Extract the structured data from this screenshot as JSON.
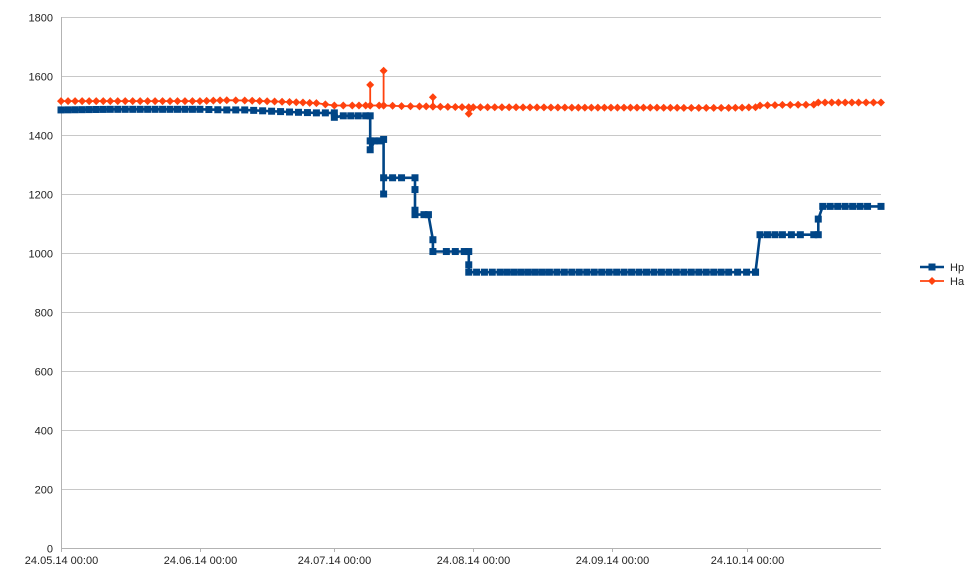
{
  "chart_data": {
    "type": "line",
    "title": "",
    "xlabel": "",
    "ylabel": "",
    "xlim": [
      "2014-05-24",
      "2014-11-23"
    ],
    "ylim": [
      0,
      1800
    ],
    "y_ticks": [
      0,
      200,
      400,
      600,
      800,
      1000,
      1200,
      1400,
      1600,
      1800
    ],
    "x_ticks": [
      {
        "date": "2014-05-24",
        "label": "24.05.14 00:00"
      },
      {
        "date": "2014-06-24",
        "label": "24.06.14 00:00"
      },
      {
        "date": "2014-07-24",
        "label": "24.07.14 00:00"
      },
      {
        "date": "2014-08-24",
        "label": "24.08.14 00:00"
      },
      {
        "date": "2014-09-24",
        "label": "24.09.14 00:00"
      },
      {
        "date": "2014-10-24",
        "label": "24.10.14 00:00"
      }
    ],
    "grid": "horizontal",
    "legend_position": "right",
    "series": [
      {
        "name": "Hp",
        "color": "#004586",
        "marker": "square",
        "points": [
          [
            "2014-05-24",
            1485
          ],
          [
            "2014-06-04",
            1487
          ],
          [
            "2014-06-14",
            1487
          ],
          [
            "2014-06-24",
            1487
          ],
          [
            "2014-06-30",
            1485
          ],
          [
            "2014-07-04",
            1485
          ],
          [
            "2014-07-08",
            1482
          ],
          [
            "2014-07-14",
            1478
          ],
          [
            "2014-07-20",
            1475
          ],
          [
            "2014-07-24",
            1475
          ],
          [
            "2014-07-24",
            1460
          ],
          [
            "2014-07-26",
            1465
          ],
          [
            "2014-07-31",
            1465
          ],
          [
            "2014-08-01",
            1465
          ],
          [
            "2014-08-01",
            1380
          ],
          [
            "2014-08-01",
            1350
          ],
          [
            "2014-08-02",
            1380
          ],
          [
            "2014-08-03",
            1380
          ],
          [
            "2014-08-04",
            1385
          ],
          [
            "2014-08-04",
            1200
          ],
          [
            "2014-08-04",
            1255
          ],
          [
            "2014-08-06",
            1255
          ],
          [
            "2014-08-08",
            1255
          ],
          [
            "2014-08-11",
            1255
          ],
          [
            "2014-08-11",
            1215
          ],
          [
            "2014-08-11",
            1145
          ],
          [
            "2014-08-11",
            1130
          ],
          [
            "2014-08-13",
            1130
          ],
          [
            "2014-08-14",
            1130
          ],
          [
            "2014-08-15",
            1045
          ],
          [
            "2014-08-15",
            1005
          ],
          [
            "2014-08-18",
            1005
          ],
          [
            "2014-08-20",
            1005
          ],
          [
            "2014-08-22",
            1005
          ],
          [
            "2014-08-23",
            1005
          ],
          [
            "2014-08-23",
            960
          ],
          [
            "2014-08-23",
            935
          ],
          [
            "2014-08-30",
            935
          ],
          [
            "2014-09-10",
            935
          ],
          [
            "2014-09-20",
            935
          ],
          [
            "2014-09-30",
            935
          ],
          [
            "2014-10-10",
            935
          ],
          [
            "2014-10-20",
            935
          ],
          [
            "2014-10-26",
            935
          ],
          [
            "2014-10-26",
            935
          ],
          [
            "2014-10-27",
            1062
          ],
          [
            "2014-11-01",
            1062
          ],
          [
            "2014-11-05",
            1062
          ],
          [
            "2014-11-08",
            1062
          ],
          [
            "2014-11-09",
            1062
          ],
          [
            "2014-11-09",
            1115
          ],
          [
            "2014-11-10",
            1158
          ],
          [
            "2014-11-15",
            1158
          ],
          [
            "2014-11-20",
            1158
          ],
          [
            "2014-11-23",
            1158
          ]
        ]
      },
      {
        "name": "Ha",
        "color": "#ff420e",
        "marker": "diamond",
        "points": [
          [
            "2014-05-24",
            1515
          ],
          [
            "2014-06-04",
            1515
          ],
          [
            "2014-06-14",
            1515
          ],
          [
            "2014-06-24",
            1515
          ],
          [
            "2014-06-30",
            1518
          ],
          [
            "2014-07-04",
            1517
          ],
          [
            "2014-07-14",
            1512
          ],
          [
            "2014-07-20",
            1508
          ],
          [
            "2014-07-24",
            1500
          ],
          [
            "2014-07-28",
            1500
          ],
          [
            "2014-07-31",
            1500
          ],
          [
            "2014-08-01",
            1500
          ],
          [
            "2014-08-01",
            1570
          ],
          [
            "2014-08-01",
            1500
          ],
          [
            "2014-08-03",
            1500
          ],
          [
            "2014-08-04",
            1500
          ],
          [
            "2014-08-04",
            1618
          ],
          [
            "2014-08-04",
            1500
          ],
          [
            "2014-08-08",
            1498
          ],
          [
            "2014-08-12",
            1497
          ],
          [
            "2014-08-15",
            1497
          ],
          [
            "2014-08-15",
            1528
          ],
          [
            "2014-08-15",
            1496
          ],
          [
            "2014-08-20",
            1495
          ],
          [
            "2014-08-23",
            1494
          ],
          [
            "2014-08-23",
            1472
          ],
          [
            "2014-08-24",
            1494
          ],
          [
            "2014-09-01",
            1494
          ],
          [
            "2014-09-15",
            1493
          ],
          [
            "2014-10-01",
            1493
          ],
          [
            "2014-10-10",
            1492
          ],
          [
            "2014-10-20",
            1492
          ],
          [
            "2014-10-26",
            1494
          ],
          [
            "2014-10-27",
            1500
          ],
          [
            "2014-11-01",
            1502
          ],
          [
            "2014-11-08",
            1503
          ],
          [
            "2014-11-09",
            1510
          ],
          [
            "2014-11-12",
            1510
          ],
          [
            "2014-11-18",
            1510
          ],
          [
            "2014-11-23",
            1510
          ]
        ]
      }
    ]
  }
}
